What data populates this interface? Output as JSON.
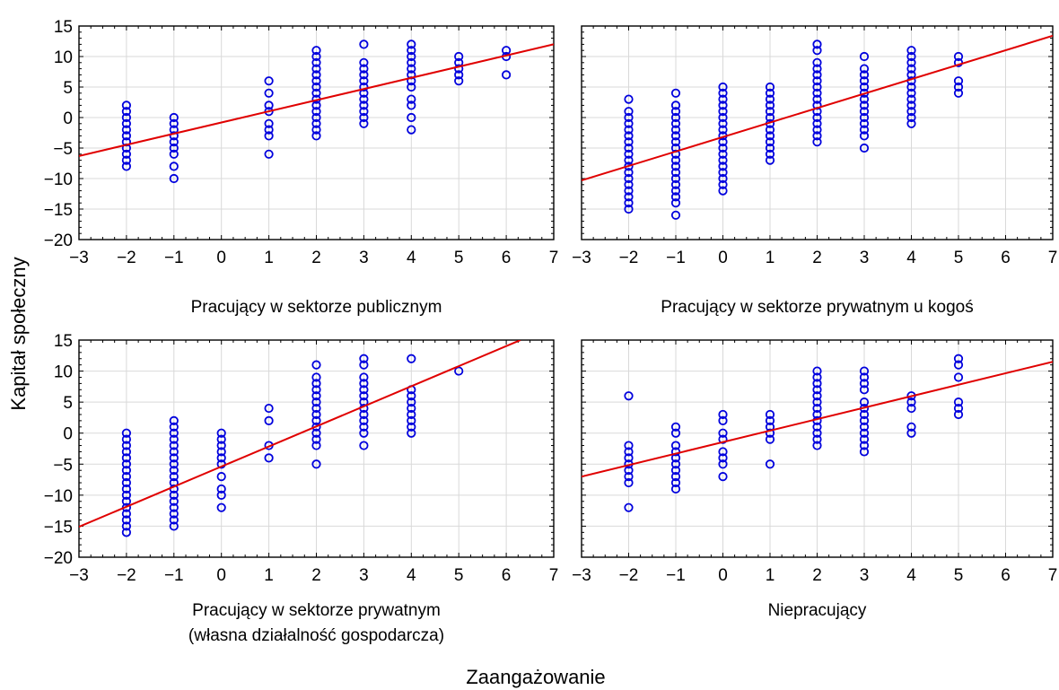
{
  "figure": {
    "ylabel": "Kapitał społeczny",
    "xlabel": "Zaangażowanie",
    "colors": {
      "points": "#0000dd",
      "fit": "#e00000",
      "grid": "#d9d9d9"
    }
  },
  "chart_data": [
    {
      "type": "scatter",
      "title": "Pracujący w sektorze publicznym",
      "xlim": [
        -3,
        7
      ],
      "ylim": [
        -20,
        15
      ],
      "xticks": [
        -3,
        -2,
        -1,
        0,
        1,
        2,
        3,
        4,
        5,
        6,
        7
      ],
      "yticks": [
        -20,
        -15,
        -10,
        -5,
        0,
        5,
        10,
        15
      ],
      "fit": {
        "x": [
          -3,
          7
        ],
        "y": [
          -6.3,
          12.0
        ]
      },
      "points": [
        [
          -2,
          2
        ],
        [
          -2,
          1
        ],
        [
          -2,
          0
        ],
        [
          -2,
          -1
        ],
        [
          -2,
          -2
        ],
        [
          -2,
          -3
        ],
        [
          -2,
          -4
        ],
        [
          -2,
          -5
        ],
        [
          -2,
          -6
        ],
        [
          -2,
          -7
        ],
        [
          -2,
          -8
        ],
        [
          -1,
          0
        ],
        [
          -1,
          -1
        ],
        [
          -1,
          -2
        ],
        [
          -1,
          -3
        ],
        [
          -1,
          -4
        ],
        [
          -1,
          -5
        ],
        [
          -1,
          -6
        ],
        [
          -1,
          -8
        ],
        [
          -1,
          -10
        ],
        [
          1,
          6
        ],
        [
          1,
          4
        ],
        [
          1,
          2
        ],
        [
          1,
          1
        ],
        [
          1,
          -1
        ],
        [
          1,
          -2
        ],
        [
          1,
          -3
        ],
        [
          1,
          -6
        ],
        [
          2,
          11
        ],
        [
          2,
          10
        ],
        [
          2,
          9
        ],
        [
          2,
          8
        ],
        [
          2,
          7
        ],
        [
          2,
          6
        ],
        [
          2,
          5
        ],
        [
          2,
          4
        ],
        [
          2,
          3
        ],
        [
          2,
          2
        ],
        [
          2,
          1
        ],
        [
          2,
          0
        ],
        [
          2,
          -1
        ],
        [
          2,
          -2
        ],
        [
          2,
          -3
        ],
        [
          3,
          12
        ],
        [
          3,
          9
        ],
        [
          3,
          8
        ],
        [
          3,
          7
        ],
        [
          3,
          6
        ],
        [
          3,
          5
        ],
        [
          3,
          4
        ],
        [
          3,
          3
        ],
        [
          3,
          2
        ],
        [
          3,
          1
        ],
        [
          3,
          0
        ],
        [
          3,
          -1
        ],
        [
          4,
          12
        ],
        [
          4,
          11
        ],
        [
          4,
          10
        ],
        [
          4,
          9
        ],
        [
          4,
          8
        ],
        [
          4,
          7
        ],
        [
          4,
          6
        ],
        [
          4,
          5
        ],
        [
          4,
          3
        ],
        [
          4,
          2
        ],
        [
          4,
          0
        ],
        [
          4,
          -2
        ],
        [
          5,
          10
        ],
        [
          5,
          9
        ],
        [
          5,
          8
        ],
        [
          5,
          7
        ],
        [
          5,
          6
        ],
        [
          6,
          11
        ],
        [
          6,
          10
        ],
        [
          6,
          7
        ]
      ]
    },
    {
      "type": "scatter",
      "title": "Pracujący w sektorze prywatnym u kogoś",
      "xlim": [
        -3,
        7
      ],
      "ylim": [
        -20,
        15
      ],
      "xticks": [
        -3,
        -2,
        -1,
        0,
        1,
        2,
        3,
        4,
        5,
        6,
        7
      ],
      "yticks": [
        -20,
        -15,
        -10,
        -5,
        0,
        5,
        10,
        15
      ],
      "fit": {
        "x": [
          -3,
          7
        ],
        "y": [
          -10.3,
          13.4
        ]
      },
      "points": [
        [
          -2,
          3
        ],
        [
          -2,
          1
        ],
        [
          -2,
          0
        ],
        [
          -2,
          -1
        ],
        [
          -2,
          -2
        ],
        [
          -2,
          -3
        ],
        [
          -2,
          -4
        ],
        [
          -2,
          -5
        ],
        [
          -2,
          -6
        ],
        [
          -2,
          -7
        ],
        [
          -2,
          -8
        ],
        [
          -2,
          -9
        ],
        [
          -2,
          -10
        ],
        [
          -2,
          -11
        ],
        [
          -2,
          -12
        ],
        [
          -2,
          -13
        ],
        [
          -2,
          -14
        ],
        [
          -2,
          -15
        ],
        [
          -1,
          4
        ],
        [
          -1,
          2
        ],
        [
          -1,
          1
        ],
        [
          -1,
          0
        ],
        [
          -1,
          -1
        ],
        [
          -1,
          -2
        ],
        [
          -1,
          -3
        ],
        [
          -1,
          -4
        ],
        [
          -1,
          -5
        ],
        [
          -1,
          -6
        ],
        [
          -1,
          -7
        ],
        [
          -1,
          -8
        ],
        [
          -1,
          -9
        ],
        [
          -1,
          -10
        ],
        [
          -1,
          -11
        ],
        [
          -1,
          -12
        ],
        [
          -1,
          -13
        ],
        [
          -1,
          -14
        ],
        [
          -1,
          -16
        ],
        [
          0,
          5
        ],
        [
          0,
          4
        ],
        [
          0,
          3
        ],
        [
          0,
          2
        ],
        [
          0,
          1
        ],
        [
          0,
          0
        ],
        [
          0,
          -1
        ],
        [
          0,
          -2
        ],
        [
          0,
          -3
        ],
        [
          0,
          -4
        ],
        [
          0,
          -5
        ],
        [
          0,
          -6
        ],
        [
          0,
          -7
        ],
        [
          0,
          -8
        ],
        [
          0,
          -9
        ],
        [
          0,
          -10
        ],
        [
          0,
          -11
        ],
        [
          0,
          -12
        ],
        [
          1,
          5
        ],
        [
          1,
          4
        ],
        [
          1,
          3
        ],
        [
          1,
          2
        ],
        [
          1,
          1
        ],
        [
          1,
          0
        ],
        [
          1,
          -1
        ],
        [
          1,
          -2
        ],
        [
          1,
          -3
        ],
        [
          1,
          -4
        ],
        [
          1,
          -5
        ],
        [
          1,
          -6
        ],
        [
          1,
          -7
        ],
        [
          2,
          12
        ],
        [
          2,
          11
        ],
        [
          2,
          9
        ],
        [
          2,
          8
        ],
        [
          2,
          7
        ],
        [
          2,
          6
        ],
        [
          2,
          5
        ],
        [
          2,
          4
        ],
        [
          2,
          3
        ],
        [
          2,
          2
        ],
        [
          2,
          1
        ],
        [
          2,
          0
        ],
        [
          2,
          -1
        ],
        [
          2,
          -2
        ],
        [
          2,
          -3
        ],
        [
          2,
          -4
        ],
        [
          3,
          10
        ],
        [
          3,
          8
        ],
        [
          3,
          7
        ],
        [
          3,
          6
        ],
        [
          3,
          5
        ],
        [
          3,
          4
        ],
        [
          3,
          3
        ],
        [
          3,
          2
        ],
        [
          3,
          1
        ],
        [
          3,
          0
        ],
        [
          3,
          -1
        ],
        [
          3,
          -2
        ],
        [
          3,
          -3
        ],
        [
          3,
          -5
        ],
        [
          4,
          11
        ],
        [
          4,
          10
        ],
        [
          4,
          9
        ],
        [
          4,
          8
        ],
        [
          4,
          7
        ],
        [
          4,
          6
        ],
        [
          4,
          5
        ],
        [
          4,
          4
        ],
        [
          4,
          3
        ],
        [
          4,
          2
        ],
        [
          4,
          1
        ],
        [
          4,
          0
        ],
        [
          4,
          -1
        ],
        [
          5,
          10
        ],
        [
          5,
          9
        ],
        [
          5,
          6
        ],
        [
          5,
          5
        ],
        [
          5,
          4
        ]
      ]
    },
    {
      "type": "scatter",
      "title": "Pracujący w sektorze prywatnym",
      "subtitle": "(własna działalność gospodarcza)",
      "xlim": [
        -3,
        7
      ],
      "ylim": [
        -20,
        15
      ],
      "xticks": [
        -3,
        -2,
        -1,
        0,
        1,
        2,
        3,
        4,
        5,
        6,
        7
      ],
      "yticks": [
        -20,
        -15,
        -10,
        -5,
        0,
        5,
        10,
        15
      ],
      "fit": {
        "x": [
          -3,
          6.3
        ],
        "y": [
          -15.1,
          15.0
        ]
      },
      "points": [
        [
          -2,
          0
        ],
        [
          -2,
          -1
        ],
        [
          -2,
          -2
        ],
        [
          -2,
          -3
        ],
        [
          -2,
          -4
        ],
        [
          -2,
          -5
        ],
        [
          -2,
          -6
        ],
        [
          -2,
          -7
        ],
        [
          -2,
          -8
        ],
        [
          -2,
          -9
        ],
        [
          -2,
          -10
        ],
        [
          -2,
          -11
        ],
        [
          -2,
          -12
        ],
        [
          -2,
          -13
        ],
        [
          -2,
          -14
        ],
        [
          -2,
          -15
        ],
        [
          -2,
          -16
        ],
        [
          -1,
          2
        ],
        [
          -1,
          1
        ],
        [
          -1,
          0
        ],
        [
          -1,
          -1
        ],
        [
          -1,
          -2
        ],
        [
          -1,
          -3
        ],
        [
          -1,
          -4
        ],
        [
          -1,
          -5
        ],
        [
          -1,
          -6
        ],
        [
          -1,
          -7
        ],
        [
          -1,
          -8
        ],
        [
          -1,
          -9
        ],
        [
          -1,
          -10
        ],
        [
          -1,
          -11
        ],
        [
          -1,
          -12
        ],
        [
          -1,
          -13
        ],
        [
          -1,
          -14
        ],
        [
          -1,
          -15
        ],
        [
          0,
          0
        ],
        [
          0,
          -1
        ],
        [
          0,
          -2
        ],
        [
          0,
          -3
        ],
        [
          0,
          -4
        ],
        [
          0,
          -5
        ],
        [
          0,
          -7
        ],
        [
          0,
          -9
        ],
        [
          0,
          -10
        ],
        [
          0,
          -12
        ],
        [
          1,
          4
        ],
        [
          1,
          2
        ],
        [
          1,
          -2
        ],
        [
          1,
          -4
        ],
        [
          2,
          11
        ],
        [
          2,
          9
        ],
        [
          2,
          8
        ],
        [
          2,
          7
        ],
        [
          2,
          6
        ],
        [
          2,
          5
        ],
        [
          2,
          4
        ],
        [
          2,
          3
        ],
        [
          2,
          2
        ],
        [
          2,
          1
        ],
        [
          2,
          0
        ],
        [
          2,
          -1
        ],
        [
          2,
          -2
        ],
        [
          2,
          -5
        ],
        [
          3,
          12
        ],
        [
          3,
          11
        ],
        [
          3,
          9
        ],
        [
          3,
          8
        ],
        [
          3,
          7
        ],
        [
          3,
          6
        ],
        [
          3,
          5
        ],
        [
          3,
          4
        ],
        [
          3,
          3
        ],
        [
          3,
          2
        ],
        [
          3,
          1
        ],
        [
          3,
          0
        ],
        [
          3,
          -2
        ],
        [
          4,
          12
        ],
        [
          4,
          7
        ],
        [
          4,
          6
        ],
        [
          4,
          5
        ],
        [
          4,
          4
        ],
        [
          4,
          3
        ],
        [
          4,
          2
        ],
        [
          4,
          1
        ],
        [
          4,
          0
        ],
        [
          5,
          10
        ]
      ]
    },
    {
      "type": "scatter",
      "title": "Niepracujący",
      "xlim": [
        -3,
        7
      ],
      "ylim": [
        -20,
        15
      ],
      "xticks": [
        -3,
        -2,
        -1,
        0,
        1,
        2,
        3,
        4,
        5,
        6,
        7
      ],
      "yticks": [
        -20,
        -15,
        -10,
        -5,
        0,
        5,
        10,
        15
      ],
      "fit": {
        "x": [
          -3,
          7
        ],
        "y": [
          -7.0,
          11.5
        ]
      },
      "points": [
        [
          -2,
          6
        ],
        [
          -2,
          -2
        ],
        [
          -2,
          -3
        ],
        [
          -2,
          -4
        ],
        [
          -2,
          -5
        ],
        [
          -2,
          -6
        ],
        [
          -2,
          -7
        ],
        [
          -2,
          -8
        ],
        [
          -2,
          -12
        ],
        [
          -1,
          1
        ],
        [
          -1,
          0
        ],
        [
          -1,
          -2
        ],
        [
          -1,
          -3
        ],
        [
          -1,
          -4
        ],
        [
          -1,
          -5
        ],
        [
          -1,
          -6
        ],
        [
          -1,
          -7
        ],
        [
          -1,
          -8
        ],
        [
          -1,
          -9
        ],
        [
          0,
          3
        ],
        [
          0,
          2
        ],
        [
          0,
          0
        ],
        [
          0,
          -1
        ],
        [
          0,
          -3
        ],
        [
          0,
          -4
        ],
        [
          0,
          -5
        ],
        [
          0,
          -7
        ],
        [
          1,
          3
        ],
        [
          1,
          2
        ],
        [
          1,
          1
        ],
        [
          1,
          0
        ],
        [
          1,
          -1
        ],
        [
          1,
          -5
        ],
        [
          2,
          10
        ],
        [
          2,
          9
        ],
        [
          2,
          8
        ],
        [
          2,
          7
        ],
        [
          2,
          6
        ],
        [
          2,
          5
        ],
        [
          2,
          4
        ],
        [
          2,
          3
        ],
        [
          2,
          2
        ],
        [
          2,
          1
        ],
        [
          2,
          0
        ],
        [
          2,
          -1
        ],
        [
          2,
          -2
        ],
        [
          3,
          10
        ],
        [
          3,
          9
        ],
        [
          3,
          8
        ],
        [
          3,
          7
        ],
        [
          3,
          5
        ],
        [
          3,
          4
        ],
        [
          3,
          3
        ],
        [
          3,
          2
        ],
        [
          3,
          1
        ],
        [
          3,
          0
        ],
        [
          3,
          -1
        ],
        [
          3,
          -2
        ],
        [
          3,
          -3
        ],
        [
          4,
          6
        ],
        [
          4,
          5
        ],
        [
          4,
          4
        ],
        [
          4,
          1
        ],
        [
          4,
          0
        ],
        [
          5,
          12
        ],
        [
          5,
          11
        ],
        [
          5,
          9
        ],
        [
          5,
          5
        ],
        [
          5,
          4
        ],
        [
          5,
          3
        ]
      ]
    }
  ]
}
